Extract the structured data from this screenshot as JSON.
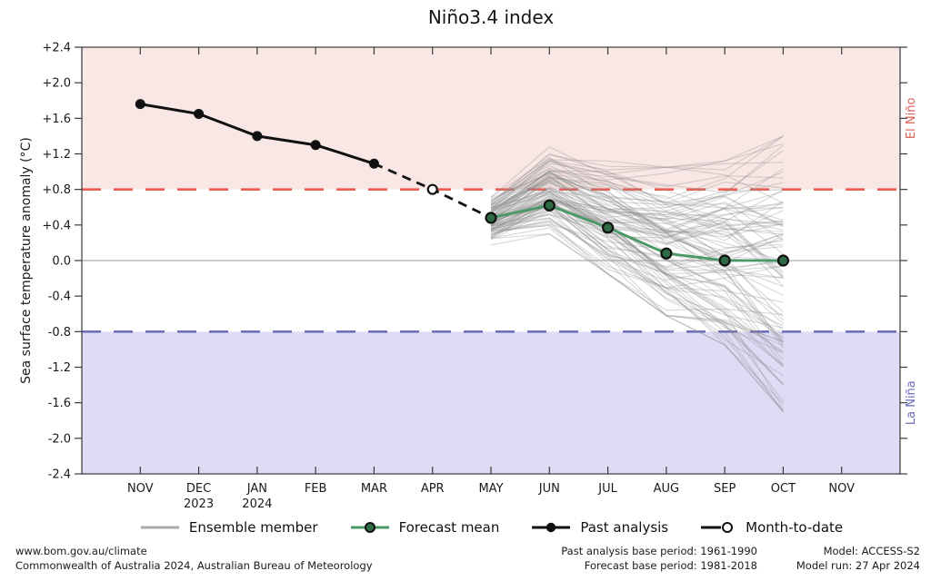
{
  "title": "Niño3.4 index",
  "axes": {
    "y_label": "Sea surface temperature anomaly (°C)",
    "y_min": -2.4,
    "y_max": 2.4,
    "y_step": 0.4,
    "months": [
      "NOV",
      "DEC",
      "JAN",
      "FEB",
      "MAR",
      "APR",
      "MAY",
      "JUN",
      "JUL",
      "AUG",
      "SEP",
      "OCT",
      "NOV"
    ],
    "year_labels": [
      {
        "text": "2023",
        "month_index": 1
      },
      {
        "text": "2024",
        "month_index": 2
      }
    ]
  },
  "bands": {
    "el_nino": {
      "label": "El Niño",
      "threshold": 0.8,
      "fill": "#f8e7e4",
      "dash_color": "#ee5d52",
      "label_color": "#d96057"
    },
    "la_nina": {
      "label": "La Niña",
      "threshold": -0.8,
      "fill": "#dedcf4",
      "dash_color": "#6f6fbe",
      "label_color": "#6a6ab8"
    }
  },
  "chart_data": {
    "type": "line",
    "x_categories": [
      "NOV 2023",
      "DEC 2023",
      "JAN 2024",
      "FEB 2024",
      "MAR 2024",
      "APR 2024",
      "MAY 2024",
      "JUN 2024",
      "JUL 2024",
      "AUG 2024",
      "SEP 2024",
      "OCT 2024",
      "NOV 2024"
    ],
    "ylim": [
      -2.4,
      2.4
    ],
    "zero_line": 0.0,
    "series": [
      {
        "name": "Past analysis",
        "style": "solid_marker",
        "color": "#111111",
        "start_index": 0,
        "values": [
          1.76,
          1.65,
          1.4,
          1.3,
          1.09
        ]
      },
      {
        "name": "Month-to-date",
        "style": "open_marker",
        "color": "#111111",
        "start_index": 5,
        "values": [
          0.8
        ]
      },
      {
        "name": "Forecast mean",
        "style": "solid_marker",
        "color": "#4a9865",
        "marker_fill": "#2e6b44",
        "start_index": 6,
        "values": [
          0.48,
          0.62,
          0.37,
          0.08,
          0.0,
          0.0
        ]
      },
      {
        "name": "Ensemble member",
        "style": "ensemble",
        "color": "#8c8c8c",
        "start_index": 6,
        "member_count": 99,
        "envelope_min": [
          0.15,
          0.3,
          -0.15,
          -0.62,
          -0.95,
          -1.7
        ],
        "envelope_max": [
          0.8,
          1.28,
          1.12,
          1.05,
          1.12,
          1.4
        ]
      }
    ],
    "dashed_transition": {
      "start_index": 4,
      "values": [
        1.09,
        0.8,
        0.48
      ]
    }
  },
  "legend": {
    "items": [
      {
        "label": "Ensemble member"
      },
      {
        "label": "Forecast mean"
      },
      {
        "label": "Past analysis"
      },
      {
        "label": "Month-to-date"
      }
    ]
  },
  "footer": {
    "left": {
      "line1": "www.bom.gov.au/climate",
      "line2": "Commonwealth of Australia 2024, Australian Bureau of Meteorology"
    },
    "middle": {
      "line1": "Past analysis base period: 1961-1990",
      "line2": "Forecast base period: 1981-2018"
    },
    "right": {
      "line1": "Model: ACCESS-S2",
      "line2": "Model run: 27 Apr 2024"
    }
  }
}
